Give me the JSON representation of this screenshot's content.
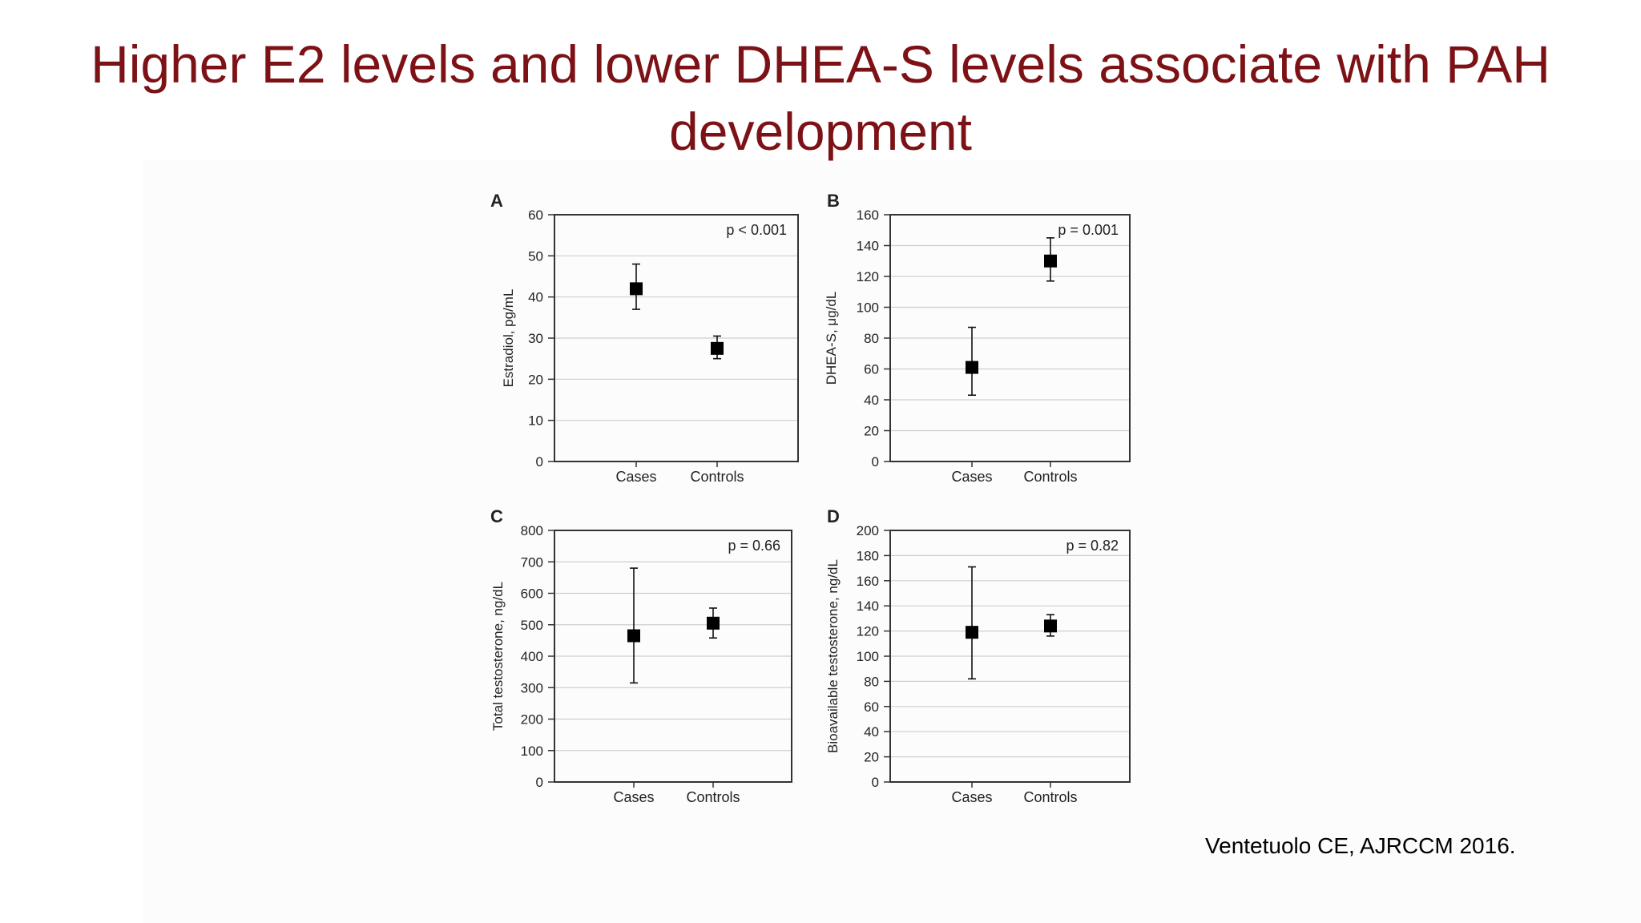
{
  "title": "Higher E2 levels and lower DHEA-S levels associate with PAH development",
  "citation": "Ventetuolo CE, AJRCCM 2016.",
  "chart_data": [
    {
      "type": "scatter",
      "panel": "A",
      "ylabel": "Estradiol, pg/mL",
      "categories": [
        "Cases",
        "Controls"
      ],
      "values": [
        42,
        27.5
      ],
      "error_low": [
        37,
        25
      ],
      "error_high": [
        48,
        30.5
      ],
      "ylim": [
        0,
        60
      ],
      "yticks": [
        0,
        10,
        20,
        30,
        40,
        50,
        60
      ],
      "annotation": "p < 0.001",
      "grid": true
    },
    {
      "type": "scatter",
      "panel": "B",
      "ylabel": "DHEA-S, μg/dL",
      "categories": [
        "Cases",
        "Controls"
      ],
      "values": [
        61,
        130
      ],
      "error_low": [
        43,
        117
      ],
      "error_high": [
        87,
        145
      ],
      "ylim": [
        0,
        160
      ],
      "yticks": [
        0,
        20,
        40,
        60,
        80,
        100,
        120,
        140,
        160
      ],
      "annotation": "p = 0.001",
      "grid": true
    },
    {
      "type": "scatter",
      "panel": "C",
      "ylabel": "Total testosterone, ng/dL",
      "categories": [
        "Cases",
        "Controls"
      ],
      "values": [
        465,
        505
      ],
      "error_low": [
        315,
        458
      ],
      "error_high": [
        680,
        553
      ],
      "ylim": [
        0,
        800
      ],
      "yticks": [
        0,
        100,
        200,
        300,
        400,
        500,
        600,
        700,
        800
      ],
      "annotation": "p = 0.66",
      "grid": true
    },
    {
      "type": "scatter",
      "panel": "D",
      "ylabel": "Bioavailable testosterone, ng/dL",
      "categories": [
        "Cases",
        "Controls"
      ],
      "values": [
        119,
        124
      ],
      "error_low": [
        82,
        116
      ],
      "error_high": [
        171,
        133
      ],
      "ylim": [
        0,
        200
      ],
      "yticks": [
        0,
        20,
        40,
        60,
        80,
        100,
        120,
        140,
        160,
        180,
        200
      ],
      "annotation": "p = 0.82",
      "grid": true
    }
  ]
}
